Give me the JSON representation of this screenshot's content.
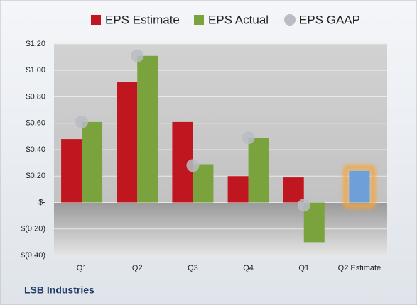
{
  "chart_data": {
    "type": "bar",
    "footer": "LSB Industries",
    "categories": [
      "Q1",
      "Q2",
      "Q3",
      "Q4",
      "Q1",
      "Q2 Estimate"
    ],
    "series": [
      {
        "name": "EPS Estimate",
        "color": "#c0161f",
        "values": [
          0.48,
          0.91,
          0.61,
          0.2,
          0.19,
          0.24
        ]
      },
      {
        "name": "EPS Actual",
        "color": "#7aa33e",
        "values": [
          0.61,
          1.11,
          0.29,
          0.49,
          -0.3,
          null
        ]
      },
      {
        "name": "EPS GAAP",
        "color": "#b8bcc4",
        "marker": "circle",
        "values": [
          0.61,
          1.11,
          0.28,
          0.49,
          -0.02,
          null
        ]
      }
    ],
    "highlight_index": 5,
    "highlight_color": "#6f9fd8",
    "highlight_glow": "#f5a53c",
    "ylim": [
      -0.4,
      1.2
    ],
    "yticks": [
      {
        "value": -0.4,
        "label": "$(0.40)"
      },
      {
        "value": -0.2,
        "label": "$(0.20)"
      },
      {
        "value": 0,
        "label": "$-"
      },
      {
        "value": 0.2,
        "label": "$0.20"
      },
      {
        "value": 0.4,
        "label": "$0.40"
      },
      {
        "value": 0.6,
        "label": "$0.60"
      },
      {
        "value": 0.8,
        "label": "$0.80"
      },
      {
        "value": 1.0,
        "label": "$1.00"
      },
      {
        "value": 1.2,
        "label": "$1.20"
      }
    ],
    "grid": true
  }
}
